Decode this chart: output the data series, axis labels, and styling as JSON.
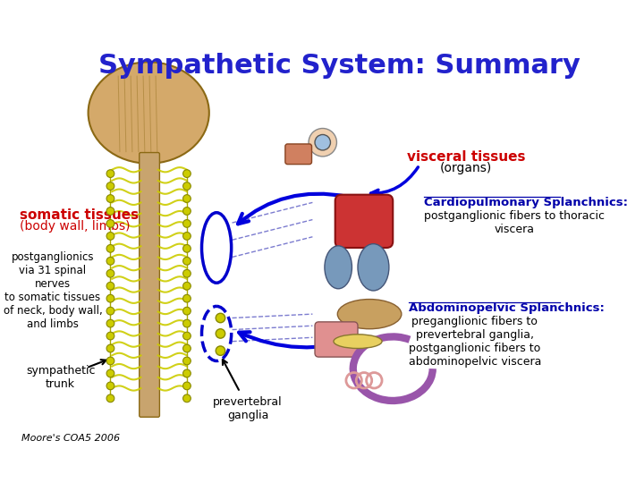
{
  "title": "Sympathetic System: Summary",
  "title_color": "#2222CC",
  "title_fontsize": 22,
  "background_color": "#FFFFFF",
  "labels": {
    "visceral_tissues": "visceral tissues",
    "organs": "(organs)",
    "somatic_tissues": "somatic tissues",
    "body_wall_limbs": "(body wall, limbs)",
    "postganglionics_text": "postganglionics\nvia 31 spinal\nnerves\nto somatic tissues\nof neck, body wall,\nand limbs",
    "sympathetic_trunk": "sympathetic\ntrunk",
    "cardiopulmonary": "Cardiopulmonary Splanchnics:",
    "cardiopulmonary_sub": "postganglionic fibers to thoracic\nviscera",
    "abdominopelvic": "Abdominopelvic Splanchnics:",
    "abdominopelvic_sub": "preganglionic fibers to\nprevertebral ganglia,\npostganglionic fibers to\nabdominopelvic viscera",
    "prevertebral_ganglia": "prevertebral\nganglia",
    "moores": "Moore's COA5 2006"
  },
  "colors": {
    "red": "#CC0000",
    "blue_dark": "#0000AA",
    "blue_medium": "#3333CC",
    "black": "#000000",
    "gray": "#555555",
    "blue_arrow": "#0000DD",
    "spine_yellow": "#CCCC00",
    "spine_chain": "#AAAA00",
    "ellipse_blue": "#0000CC",
    "dashed_blue": "#4444BB"
  }
}
